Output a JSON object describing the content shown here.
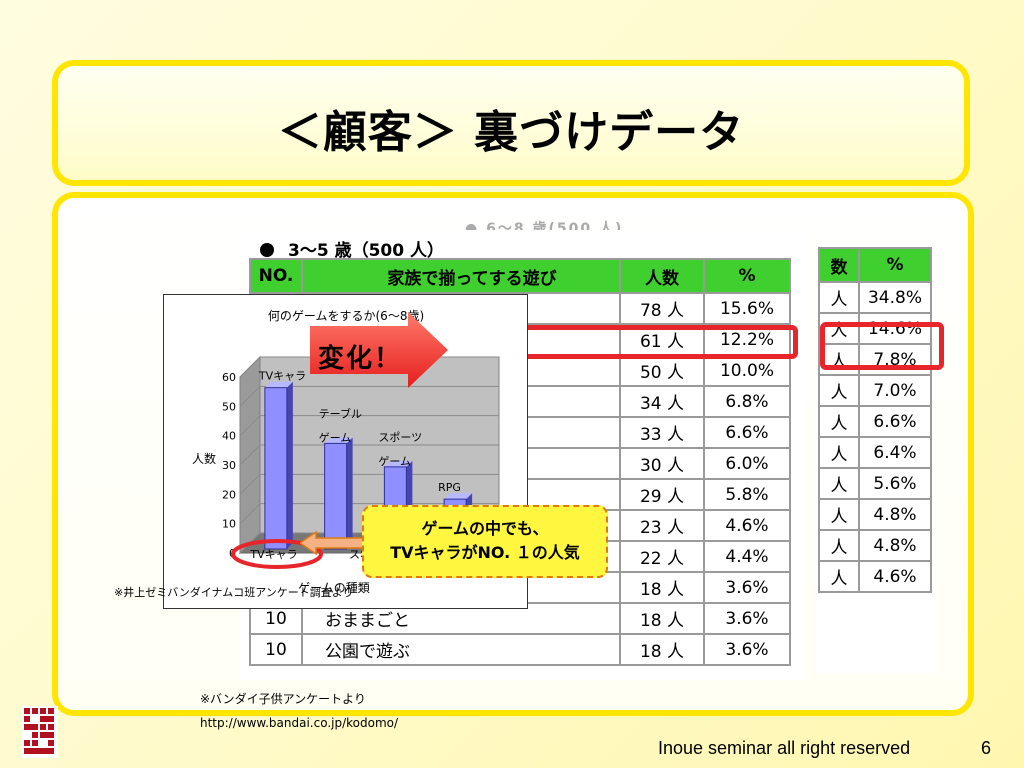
{
  "slide": {
    "title": "＜顧客＞ 裏づけデータ",
    "section_heading": "3～5 歳（500 人）",
    "ghost_heading": "● 6～8 歳(500 人)",
    "arrow_label": "変化！",
    "callout_line1": "ゲームの中でも、",
    "callout_line2": "TVキャラがNO. １の人気",
    "inset_note": "※井上ゼミバンダイナムコ班アンケート調査より",
    "source_line1": "※バンダイ子供アンケートより",
    "source_line2": "http://www.bandai.co.jp/kodomo/",
    "footer": "Inoue seminar all right  reserved",
    "page_number": "6"
  },
  "main_table": {
    "headers": [
      "NO.",
      "家族で揃ってする遊び",
      "人数",
      "%"
    ],
    "rows": [
      {
        "no": "1",
        "play": "",
        "count": "78 人",
        "pct": "15.6%"
      },
      {
        "no": "2",
        "play": "",
        "count": "61 人",
        "pct": "12.2%"
      },
      {
        "no": "3",
        "play": "",
        "count": "50 人",
        "pct": "10.0%"
      },
      {
        "no": "4",
        "play": "",
        "count": "34 人",
        "pct": "6.8%"
      },
      {
        "no": "5",
        "play": "",
        "count": "33 人",
        "pct": "6.6%"
      },
      {
        "no": "6",
        "play": "",
        "count": "30 人",
        "pct": "6.0%"
      },
      {
        "no": "7",
        "play": "",
        "count": "29 人",
        "pct": "5.8%"
      },
      {
        "no": "8",
        "play": "",
        "count": "23 人",
        "pct": "4.6%"
      },
      {
        "no": "9",
        "play": "",
        "count": "22 人",
        "pct": "4.4%"
      },
      {
        "no": "10",
        "play": "",
        "count": "18 人",
        "pct": "3.6%"
      },
      {
        "no": "10",
        "play": "おままごと",
        "count": "18 人",
        "pct": "3.6%"
      },
      {
        "no": "10",
        "play": "公園で遊ぶ",
        "count": "18 人",
        "pct": "3.6%"
      }
    ]
  },
  "right_table": {
    "headers": [
      "数",
      "%"
    ],
    "rows": [
      {
        "count": "人",
        "pct": "34.8%"
      },
      {
        "count": "人",
        "pct": "14.6%"
      },
      {
        "count": "人",
        "pct": "7.8%"
      },
      {
        "count": "人",
        "pct": "7.0%"
      },
      {
        "count": "人",
        "pct": "6.6%"
      },
      {
        "count": "人",
        "pct": "6.4%"
      },
      {
        "count": "人",
        "pct": "5.6%"
      },
      {
        "count": "人",
        "pct": "4.8%"
      },
      {
        "count": "人",
        "pct": "4.8%"
      },
      {
        "count": "人",
        "pct": "4.6%"
      }
    ]
  },
  "colors": {
    "header_green": "#3fcf2e",
    "highlight_red": "#e8252a",
    "frame_yellow": "#ffe600",
    "bar_fill": "#8f8fff",
    "arrow_red": "#ee3333",
    "callout_yellow": "#fff63f"
  },
  "chart_data": {
    "type": "bar",
    "title": "何のゲームをするか(6～8歳)",
    "ylabel": "人数",
    "xlabel": "ゲームの種類",
    "ylim": [
      0,
      60
    ],
    "yticks": [
      "0",
      "10",
      "20",
      "30",
      "40",
      "50",
      "60"
    ],
    "categories": [
      "TVキャラ",
      "テーブルゲーム",
      "スポーツゲーム",
      "RPG"
    ],
    "values": [
      55,
      36,
      28,
      17
    ],
    "bar_labels": [
      "TVキャラ",
      "テーブル\nゲーム",
      "スポーツ\nゲーム",
      "RPG"
    ],
    "axis_labels_visible": [
      "TVキャラ",
      "スポ"
    ],
    "grid": true
  }
}
